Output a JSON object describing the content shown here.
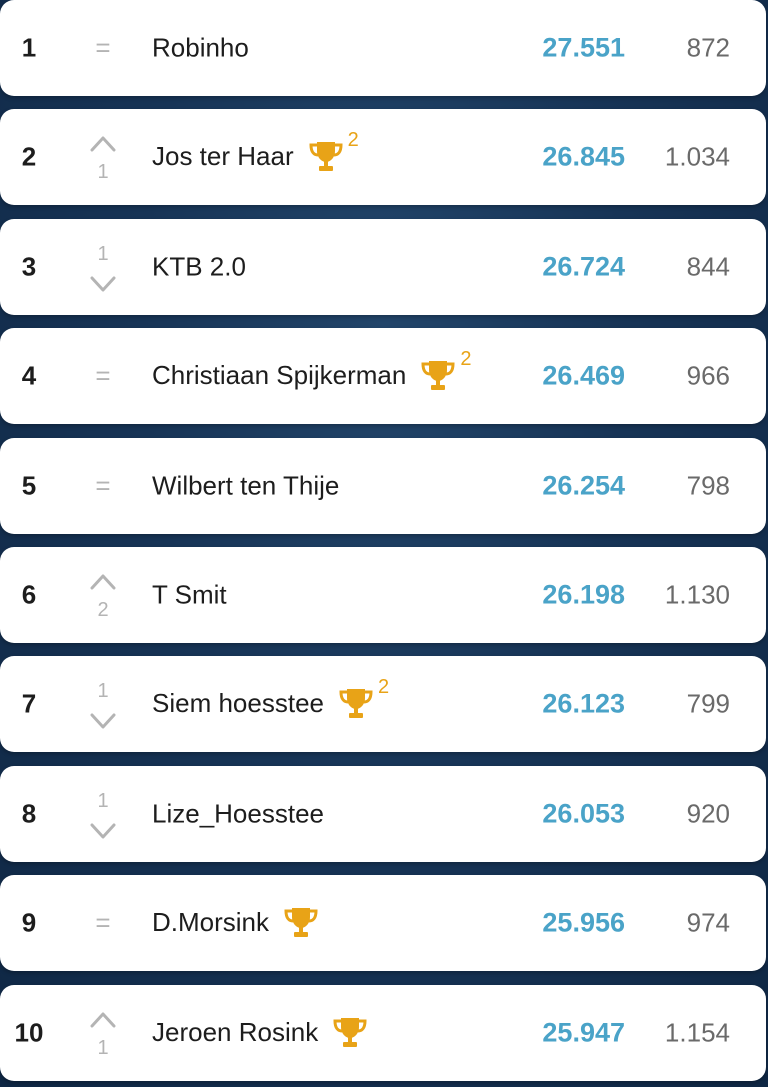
{
  "colors": {
    "points": "#4aa3c8",
    "trophy": "#e8a317",
    "movement": "#b4b4b4",
    "background": "#173456"
  },
  "rows": [
    {
      "rank": "1",
      "movement": "same",
      "move_symbol": "=",
      "move_value": "",
      "name": "Robinho",
      "trophy": false,
      "trophy_count": "",
      "points": "27.551",
      "count": "872"
    },
    {
      "rank": "2",
      "movement": "up",
      "move_symbol": "",
      "move_value": "1",
      "name": "Jos ter Haar",
      "trophy": true,
      "trophy_count": "2",
      "points": "26.845",
      "count": "1.034"
    },
    {
      "rank": "3",
      "movement": "down",
      "move_symbol": "",
      "move_value": "1",
      "name": "KTB 2.0",
      "trophy": false,
      "trophy_count": "",
      "points": "26.724",
      "count": "844"
    },
    {
      "rank": "4",
      "movement": "same",
      "move_symbol": "=",
      "move_value": "",
      "name": "Christiaan Spijkerman",
      "trophy": true,
      "trophy_count": "2",
      "points": "26.469",
      "count": "966"
    },
    {
      "rank": "5",
      "movement": "same",
      "move_symbol": "=",
      "move_value": "",
      "name": "Wilbert ten Thije",
      "trophy": false,
      "trophy_count": "",
      "points": "26.254",
      "count": "798"
    },
    {
      "rank": "6",
      "movement": "up",
      "move_symbol": "",
      "move_value": "2",
      "name": "T Smit",
      "trophy": false,
      "trophy_count": "",
      "points": "26.198",
      "count": "1.130"
    },
    {
      "rank": "7",
      "movement": "down",
      "move_symbol": "",
      "move_value": "1",
      "name": "Siem hoesstee",
      "trophy": true,
      "trophy_count": "2",
      "points": "26.123",
      "count": "799"
    },
    {
      "rank": "8",
      "movement": "down",
      "move_symbol": "",
      "move_value": "1",
      "name": "Lize_Hoesstee",
      "trophy": false,
      "trophy_count": "",
      "points": "26.053",
      "count": "920"
    },
    {
      "rank": "9",
      "movement": "same",
      "move_symbol": "=",
      "move_value": "",
      "name": "D.Morsink",
      "trophy": true,
      "trophy_count": "",
      "points": "25.956",
      "count": "974"
    },
    {
      "rank": "10",
      "movement": "up",
      "move_symbol": "",
      "move_value": "1",
      "name": "Jeroen Rosink",
      "trophy": true,
      "trophy_count": "",
      "points": "25.947",
      "count": "1.154"
    }
  ]
}
